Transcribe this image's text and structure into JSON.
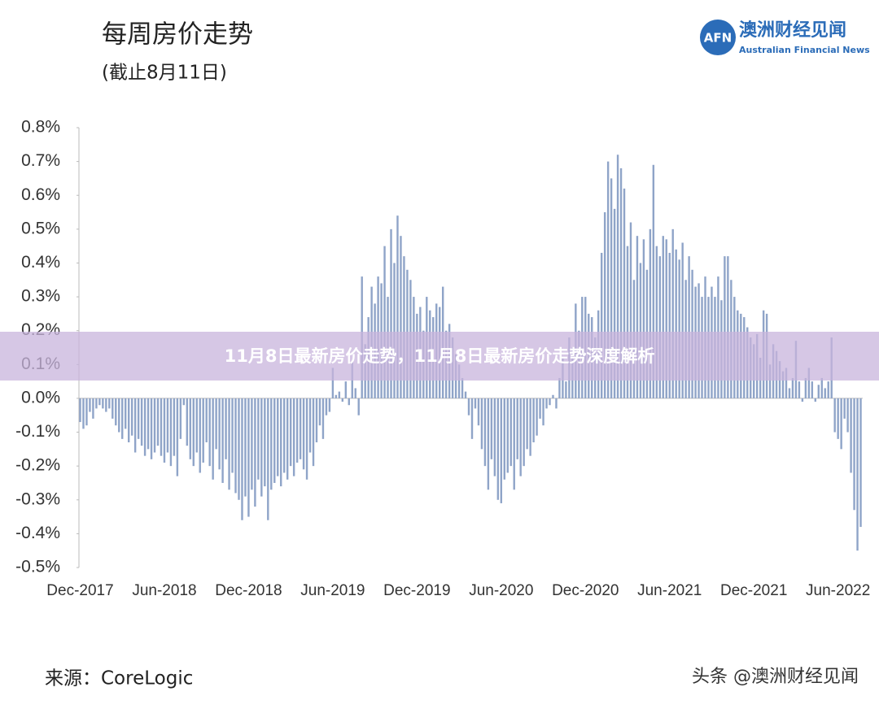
{
  "logo": {
    "mark": "AFN",
    "name": "澳洲财经见闻",
    "english": "Australian Financial News"
  },
  "source": "来源：CoreLogic",
  "footer": "头条 @澳洲财经见闻",
  "banner": "11月8日最新房价走势，11月8日最新房价走势深度解析",
  "chart_data": {
    "type": "bar",
    "title": "每周房价走势",
    "subtitle": "(截止8月11日)",
    "color": "#8fa4c8",
    "categories": [
      "Dec-2017",
      null,
      null,
      null,
      null,
      null,
      null,
      null,
      null,
      null,
      null,
      null,
      null,
      null,
      null,
      null,
      null,
      null,
      null,
      null,
      null,
      null,
      null,
      null,
      null,
      null,
      "Jun-2018",
      null,
      null,
      null,
      null,
      null,
      null,
      null,
      null,
      null,
      null,
      null,
      null,
      null,
      null,
      null,
      null,
      null,
      null,
      null,
      null,
      null,
      null,
      null,
      null,
      null,
      "Dec-2018",
      null,
      null,
      null,
      null,
      null,
      null,
      null,
      null,
      null,
      null,
      null,
      null,
      null,
      null,
      null,
      null,
      null,
      null,
      null,
      null,
      null,
      null,
      null,
      null,
      null,
      "Jun-2019",
      null,
      null,
      null,
      null,
      null,
      null,
      null,
      null,
      null,
      null,
      null,
      null,
      null,
      null,
      null,
      null,
      null,
      null,
      null,
      null,
      null,
      null,
      null,
      null,
      null,
      "Dec-2019",
      null,
      null,
      null,
      null,
      null,
      null,
      null,
      null,
      null,
      null,
      null,
      null,
      null,
      null,
      null,
      null,
      null,
      null,
      null,
      null,
      null,
      null,
      null,
      null,
      null,
      "Jun-2020",
      null,
      null,
      null,
      null,
      null,
      null,
      null,
      null,
      null,
      null,
      null,
      null,
      null,
      null,
      null,
      null,
      null,
      null,
      null,
      null,
      null,
      null,
      null,
      null,
      null,
      "Dec-2020",
      null,
      null,
      null,
      null,
      null,
      null,
      null,
      null,
      null,
      null,
      null,
      null,
      null,
      null,
      null,
      null,
      null,
      null,
      null,
      null,
      null,
      null,
      null,
      null,
      null,
      "Jun-2021",
      null,
      null,
      null,
      null,
      null,
      null,
      null,
      null,
      null,
      null,
      null,
      null,
      null,
      null,
      null,
      null,
      null,
      null,
      null,
      null,
      null,
      null,
      null,
      null,
      null,
      "Dec-2021",
      null,
      null,
      null,
      null,
      null,
      null,
      null,
      null,
      null,
      null,
      null,
      null,
      null,
      null,
      null,
      null,
      null,
      null,
      null,
      null,
      null,
      null,
      null,
      null,
      null,
      "Jun-2022",
      null,
      null,
      null,
      null,
      null,
      null,
      null
    ],
    "values": [
      -0.07,
      -0.09,
      -0.08,
      -0.04,
      -0.06,
      -0.03,
      -0.02,
      -0.03,
      -0.04,
      -0.03,
      -0.06,
      -0.08,
      -0.1,
      -0.12,
      -0.09,
      -0.13,
      -0.11,
      -0.16,
      -0.12,
      -0.14,
      -0.17,
      -0.15,
      -0.18,
      -0.16,
      -0.14,
      -0.17,
      -0.19,
      -0.16,
      -0.2,
      -0.17,
      -0.23,
      -0.12,
      -0.02,
      -0.14,
      -0.18,
      -0.2,
      -0.16,
      -0.22,
      -0.19,
      -0.13,
      -0.2,
      -0.24,
      -0.15,
      -0.21,
      -0.25,
      -0.18,
      -0.27,
      -0.22,
      -0.28,
      -0.3,
      -0.36,
      -0.29,
      -0.35,
      -0.27,
      -0.32,
      -0.24,
      -0.29,
      -0.26,
      -0.36,
      -0.27,
      -0.25,
      -0.23,
      -0.26,
      -0.22,
      -0.24,
      -0.2,
      -0.23,
      -0.19,
      -0.18,
      -0.21,
      -0.24,
      -0.16,
      -0.2,
      -0.13,
      -0.08,
      -0.12,
      -0.05,
      -0.04,
      0.09,
      0.01,
      0.02,
      -0.01,
      0.05,
      -0.02,
      0.11,
      0.03,
      -0.05,
      0.36,
      0.16,
      0.24,
      0.33,
      0.28,
      0.36,
      0.34,
      0.45,
      0.3,
      0.5,
      0.4,
      0.54,
      0.48,
      0.42,
      0.38,
      0.35,
      0.3,
      0.25,
      0.27,
      0.2,
      0.3,
      0.26,
      0.24,
      0.28,
      0.27,
      0.33,
      0.2,
      0.22,
      0.18,
      0.13,
      0.1,
      0.06,
      0.02,
      -0.05,
      -0.12,
      -0.03,
      -0.08,
      -0.15,
      -0.2,
      -0.27,
      -0.18,
      -0.23,
      -0.3,
      -0.31,
      -0.24,
      -0.22,
      -0.2,
      -0.27,
      -0.18,
      -0.23,
      -0.2,
      -0.15,
      -0.17,
      -0.13,
      -0.11,
      -0.06,
      -0.08,
      -0.03,
      -0.02,
      0.01,
      -0.03,
      0.06,
      0.12,
      0.05,
      0.18,
      0.15,
      0.28,
      0.2,
      0.3,
      0.3,
      0.25,
      0.24,
      0.18,
      0.26,
      0.43,
      0.55,
      0.7,
      0.65,
      0.56,
      0.72,
      0.68,
      0.62,
      0.45,
      0.52,
      0.35,
      0.48,
      0.4,
      0.47,
      0.38,
      0.5,
      0.69,
      0.45,
      0.42,
      0.48,
      0.47,
      0.43,
      0.5,
      0.44,
      0.41,
      0.46,
      0.35,
      0.42,
      0.38,
      0.33,
      0.34,
      0.3,
      0.36,
      0.3,
      0.33,
      0.3,
      0.36,
      0.29,
      0.42,
      0.42,
      0.35,
      0.3,
      0.26,
      0.25,
      0.24,
      0.21,
      0.18,
      0.16,
      0.19,
      0.12,
      0.26,
      0.25,
      0.1,
      0.16,
      0.14,
      0.11,
      0.08,
      0.09,
      0.03,
      0.06,
      0.17,
      0.05,
      -0.01,
      0.06,
      0.09,
      0.05,
      -0.01,
      0.04,
      0.06,
      0.03,
      0.05,
      0.18,
      -0.1,
      -0.12,
      -0.15,
      -0.06,
      -0.1,
      -0.22,
      -0.33,
      -0.45,
      -0.38
    ],
    "ylim": [
      -0.5,
      0.8
    ],
    "yticks": [
      {
        "value": 0.8,
        "label": "0.8%"
      },
      {
        "value": 0.7,
        "label": "0.7%"
      },
      {
        "value": 0.6,
        "label": "0.6%"
      },
      {
        "value": 0.5,
        "label": "0.5%"
      },
      {
        "value": 0.4,
        "label": "0.4%"
      },
      {
        "value": 0.3,
        "label": "0.3%"
      },
      {
        "value": 0.2,
        "label": "0.2%"
      },
      {
        "value": 0.1,
        "label": "0.1%"
      },
      {
        "value": 0,
        "label": "0.0%"
      },
      {
        "value": -0.1,
        "label": "-0.1%"
      },
      {
        "value": -0.2,
        "label": "-0.2%"
      },
      {
        "value": -0.3,
        "label": "-0.3%"
      },
      {
        "value": -0.4,
        "label": "-0.4%"
      },
      {
        "value": -0.5,
        "label": "-0.5%"
      }
    ],
    "grid": false
  }
}
